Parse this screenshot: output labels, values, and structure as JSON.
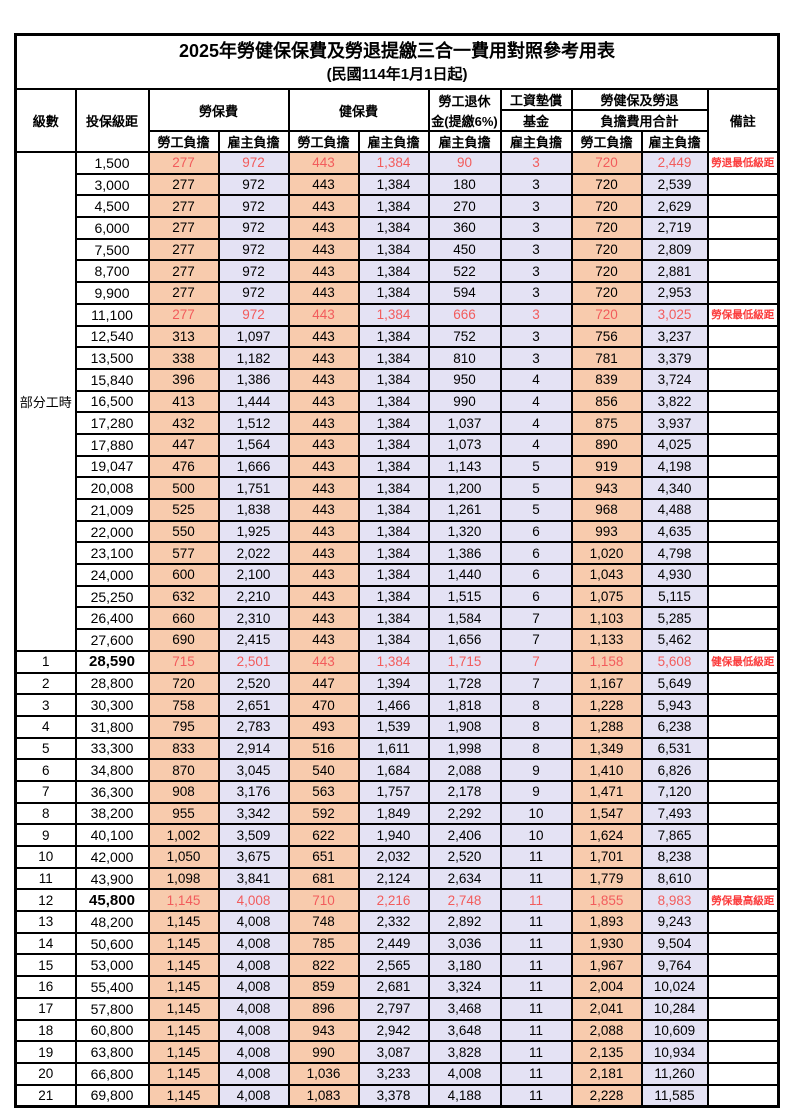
{
  "title": "2025年勞健保保費及勞退提繳三合一費用對照參考用表",
  "subtitle": "(民國114年1月1日起)",
  "header": {
    "level": "級數",
    "bracket": "投保級距",
    "labor_insurance": "勞保費",
    "health_insurance": "健保費",
    "pension_line1": "勞工退休",
    "pension_line2": "金(提繳6%)",
    "wage_fund_line1": "工資墊償",
    "wage_fund_line2": "基金",
    "total_line1": "勞健保及勞退",
    "total_line2": "負擔費用合計",
    "remarks": "備註",
    "employee": "勞工負擔",
    "employer": "雇主負擔"
  },
  "colors": {
    "employee_bg": "#f8cbad",
    "employer_bg": "#e4e2f4",
    "highlight_text": "#f25c5c",
    "remark_text": "#fb3b3b",
    "border": "#000000"
  },
  "table": {
    "part_time": {
      "label": "部分工時",
      "span": 23
    },
    "rows": [
      {
        "level": "",
        "bracket": "1,500",
        "values": [
          "277",
          "972",
          "443",
          "1,384",
          "90",
          "3",
          "720",
          "2,449"
        ],
        "remark": "勞退最低級距",
        "highlight": true
      },
      {
        "level": "",
        "bracket": "3,000",
        "values": [
          "277",
          "972",
          "443",
          "1,384",
          "180",
          "3",
          "720",
          "2,539"
        ],
        "remark": ""
      },
      {
        "level": "",
        "bracket": "4,500",
        "values": [
          "277",
          "972",
          "443",
          "1,384",
          "270",
          "3",
          "720",
          "2,629"
        ],
        "remark": ""
      },
      {
        "level": "",
        "bracket": "6,000",
        "values": [
          "277",
          "972",
          "443",
          "1,384",
          "360",
          "3",
          "720",
          "2,719"
        ],
        "remark": ""
      },
      {
        "level": "",
        "bracket": "7,500",
        "values": [
          "277",
          "972",
          "443",
          "1,384",
          "450",
          "3",
          "720",
          "2,809"
        ],
        "remark": ""
      },
      {
        "level": "",
        "bracket": "8,700",
        "values": [
          "277",
          "972",
          "443",
          "1,384",
          "522",
          "3",
          "720",
          "2,881"
        ],
        "remark": ""
      },
      {
        "level": "",
        "bracket": "9,900",
        "values": [
          "277",
          "972",
          "443",
          "1,384",
          "594",
          "3",
          "720",
          "2,953"
        ],
        "remark": ""
      },
      {
        "level": "",
        "bracket": "11,100",
        "values": [
          "277",
          "972",
          "443",
          "1,384",
          "666",
          "3",
          "720",
          "3,025"
        ],
        "remark": "勞保最低級距",
        "highlight": true
      },
      {
        "level": "",
        "bracket": "12,540",
        "values": [
          "313",
          "1,097",
          "443",
          "1,384",
          "752",
          "3",
          "756",
          "3,237"
        ],
        "remark": ""
      },
      {
        "level": "",
        "bracket": "13,500",
        "values": [
          "338",
          "1,182",
          "443",
          "1,384",
          "810",
          "3",
          "781",
          "3,379"
        ],
        "remark": ""
      },
      {
        "level": "",
        "bracket": "15,840",
        "values": [
          "396",
          "1,386",
          "443",
          "1,384",
          "950",
          "4",
          "839",
          "3,724"
        ],
        "remark": ""
      },
      {
        "level": "",
        "bracket": "16,500",
        "values": [
          "413",
          "1,444",
          "443",
          "1,384",
          "990",
          "4",
          "856",
          "3,822"
        ],
        "remark": ""
      },
      {
        "level": "",
        "bracket": "17,280",
        "values": [
          "432",
          "1,512",
          "443",
          "1,384",
          "1,037",
          "4",
          "875",
          "3,937"
        ],
        "remark": ""
      },
      {
        "level": "",
        "bracket": "17,880",
        "values": [
          "447",
          "1,564",
          "443",
          "1,384",
          "1,073",
          "4",
          "890",
          "4,025"
        ],
        "remark": ""
      },
      {
        "level": "",
        "bracket": "19,047",
        "values": [
          "476",
          "1,666",
          "443",
          "1,384",
          "1,143",
          "5",
          "919",
          "4,198"
        ],
        "remark": ""
      },
      {
        "level": "",
        "bracket": "20,008",
        "values": [
          "500",
          "1,751",
          "443",
          "1,384",
          "1,200",
          "5",
          "943",
          "4,340"
        ],
        "remark": ""
      },
      {
        "level": "",
        "bracket": "21,009",
        "values": [
          "525",
          "1,838",
          "443",
          "1,384",
          "1,261",
          "5",
          "968",
          "4,488"
        ],
        "remark": ""
      },
      {
        "level": "",
        "bracket": "22,000",
        "values": [
          "550",
          "1,925",
          "443",
          "1,384",
          "1,320",
          "6",
          "993",
          "4,635"
        ],
        "remark": ""
      },
      {
        "level": "",
        "bracket": "23,100",
        "values": [
          "577",
          "2,022",
          "443",
          "1,384",
          "1,386",
          "6",
          "1,020",
          "4,798"
        ],
        "remark": ""
      },
      {
        "level": "",
        "bracket": "24,000",
        "values": [
          "600",
          "2,100",
          "443",
          "1,384",
          "1,440",
          "6",
          "1,043",
          "4,930"
        ],
        "remark": ""
      },
      {
        "level": "",
        "bracket": "25,250",
        "values": [
          "632",
          "2,210",
          "443",
          "1,384",
          "1,515",
          "6",
          "1,075",
          "5,115"
        ],
        "remark": ""
      },
      {
        "level": "",
        "bracket": "26,400",
        "values": [
          "660",
          "2,310",
          "443",
          "1,384",
          "1,584",
          "7",
          "1,103",
          "5,285"
        ],
        "remark": ""
      },
      {
        "level": "",
        "bracket": "27,600",
        "values": [
          "690",
          "2,415",
          "443",
          "1,384",
          "1,656",
          "7",
          "1,133",
          "5,462"
        ],
        "remark": ""
      },
      {
        "level": "1",
        "bracket": "28,590",
        "values": [
          "715",
          "2,501",
          "443",
          "1,384",
          "1,715",
          "7",
          "1,158",
          "5,608"
        ],
        "remark": "健保最低級距",
        "highlight": true,
        "bracket_bold": true
      },
      {
        "level": "2",
        "bracket": "28,800",
        "values": [
          "720",
          "2,520",
          "447",
          "1,394",
          "1,728",
          "7",
          "1,167",
          "5,649"
        ],
        "remark": ""
      },
      {
        "level": "3",
        "bracket": "30,300",
        "values": [
          "758",
          "2,651",
          "470",
          "1,466",
          "1,818",
          "8",
          "1,228",
          "5,943"
        ],
        "remark": ""
      },
      {
        "level": "4",
        "bracket": "31,800",
        "values": [
          "795",
          "2,783",
          "493",
          "1,539",
          "1,908",
          "8",
          "1,288",
          "6,238"
        ],
        "remark": ""
      },
      {
        "level": "5",
        "bracket": "33,300",
        "values": [
          "833",
          "2,914",
          "516",
          "1,611",
          "1,998",
          "8",
          "1,349",
          "6,531"
        ],
        "remark": ""
      },
      {
        "level": "6",
        "bracket": "34,800",
        "values": [
          "870",
          "3,045",
          "540",
          "1,684",
          "2,088",
          "9",
          "1,410",
          "6,826"
        ],
        "remark": ""
      },
      {
        "level": "7",
        "bracket": "36,300",
        "values": [
          "908",
          "3,176",
          "563",
          "1,757",
          "2,178",
          "9",
          "1,471",
          "7,120"
        ],
        "remark": ""
      },
      {
        "level": "8",
        "bracket": "38,200",
        "values": [
          "955",
          "3,342",
          "592",
          "1,849",
          "2,292",
          "10",
          "1,547",
          "7,493"
        ],
        "remark": ""
      },
      {
        "level": "9",
        "bracket": "40,100",
        "values": [
          "1,002",
          "3,509",
          "622",
          "1,940",
          "2,406",
          "10",
          "1,624",
          "7,865"
        ],
        "remark": ""
      },
      {
        "level": "10",
        "bracket": "42,000",
        "values": [
          "1,050",
          "3,675",
          "651",
          "2,032",
          "2,520",
          "11",
          "1,701",
          "8,238"
        ],
        "remark": ""
      },
      {
        "level": "11",
        "bracket": "43,900",
        "values": [
          "1,098",
          "3,841",
          "681",
          "2,124",
          "2,634",
          "11",
          "1,779",
          "8,610"
        ],
        "remark": ""
      },
      {
        "level": "12",
        "bracket": "45,800",
        "values": [
          "1,145",
          "4,008",
          "710",
          "2,216",
          "2,748",
          "11",
          "1,855",
          "8,983"
        ],
        "remark": "勞保最高級距",
        "highlight": true,
        "bracket_bold": true
      },
      {
        "level": "13",
        "bracket": "48,200",
        "values": [
          "1,145",
          "4,008",
          "748",
          "2,332",
          "2,892",
          "11",
          "1,893",
          "9,243"
        ],
        "remark": ""
      },
      {
        "level": "14",
        "bracket": "50,600",
        "values": [
          "1,145",
          "4,008",
          "785",
          "2,449",
          "3,036",
          "11",
          "1,930",
          "9,504"
        ],
        "remark": ""
      },
      {
        "level": "15",
        "bracket": "53,000",
        "values": [
          "1,145",
          "4,008",
          "822",
          "2,565",
          "3,180",
          "11",
          "1,967",
          "9,764"
        ],
        "remark": ""
      },
      {
        "level": "16",
        "bracket": "55,400",
        "values": [
          "1,145",
          "4,008",
          "859",
          "2,681",
          "3,324",
          "11",
          "2,004",
          "10,024"
        ],
        "remark": ""
      },
      {
        "level": "17",
        "bracket": "57,800",
        "values": [
          "1,145",
          "4,008",
          "896",
          "2,797",
          "3,468",
          "11",
          "2,041",
          "10,284"
        ],
        "remark": ""
      },
      {
        "level": "18",
        "bracket": "60,800",
        "values": [
          "1,145",
          "4,008",
          "943",
          "2,942",
          "3,648",
          "11",
          "2,088",
          "10,609"
        ],
        "remark": ""
      },
      {
        "level": "19",
        "bracket": "63,800",
        "values": [
          "1,145",
          "4,008",
          "990",
          "3,087",
          "3,828",
          "11",
          "2,135",
          "10,934"
        ],
        "remark": ""
      },
      {
        "level": "20",
        "bracket": "66,800",
        "values": [
          "1,145",
          "4,008",
          "1,036",
          "3,233",
          "4,008",
          "11",
          "2,181",
          "11,260"
        ],
        "remark": ""
      },
      {
        "level": "21",
        "bracket": "69,800",
        "values": [
          "1,145",
          "4,008",
          "1,083",
          "3,378",
          "4,188",
          "11",
          "2,228",
          "11,585"
        ],
        "remark": ""
      }
    ]
  }
}
